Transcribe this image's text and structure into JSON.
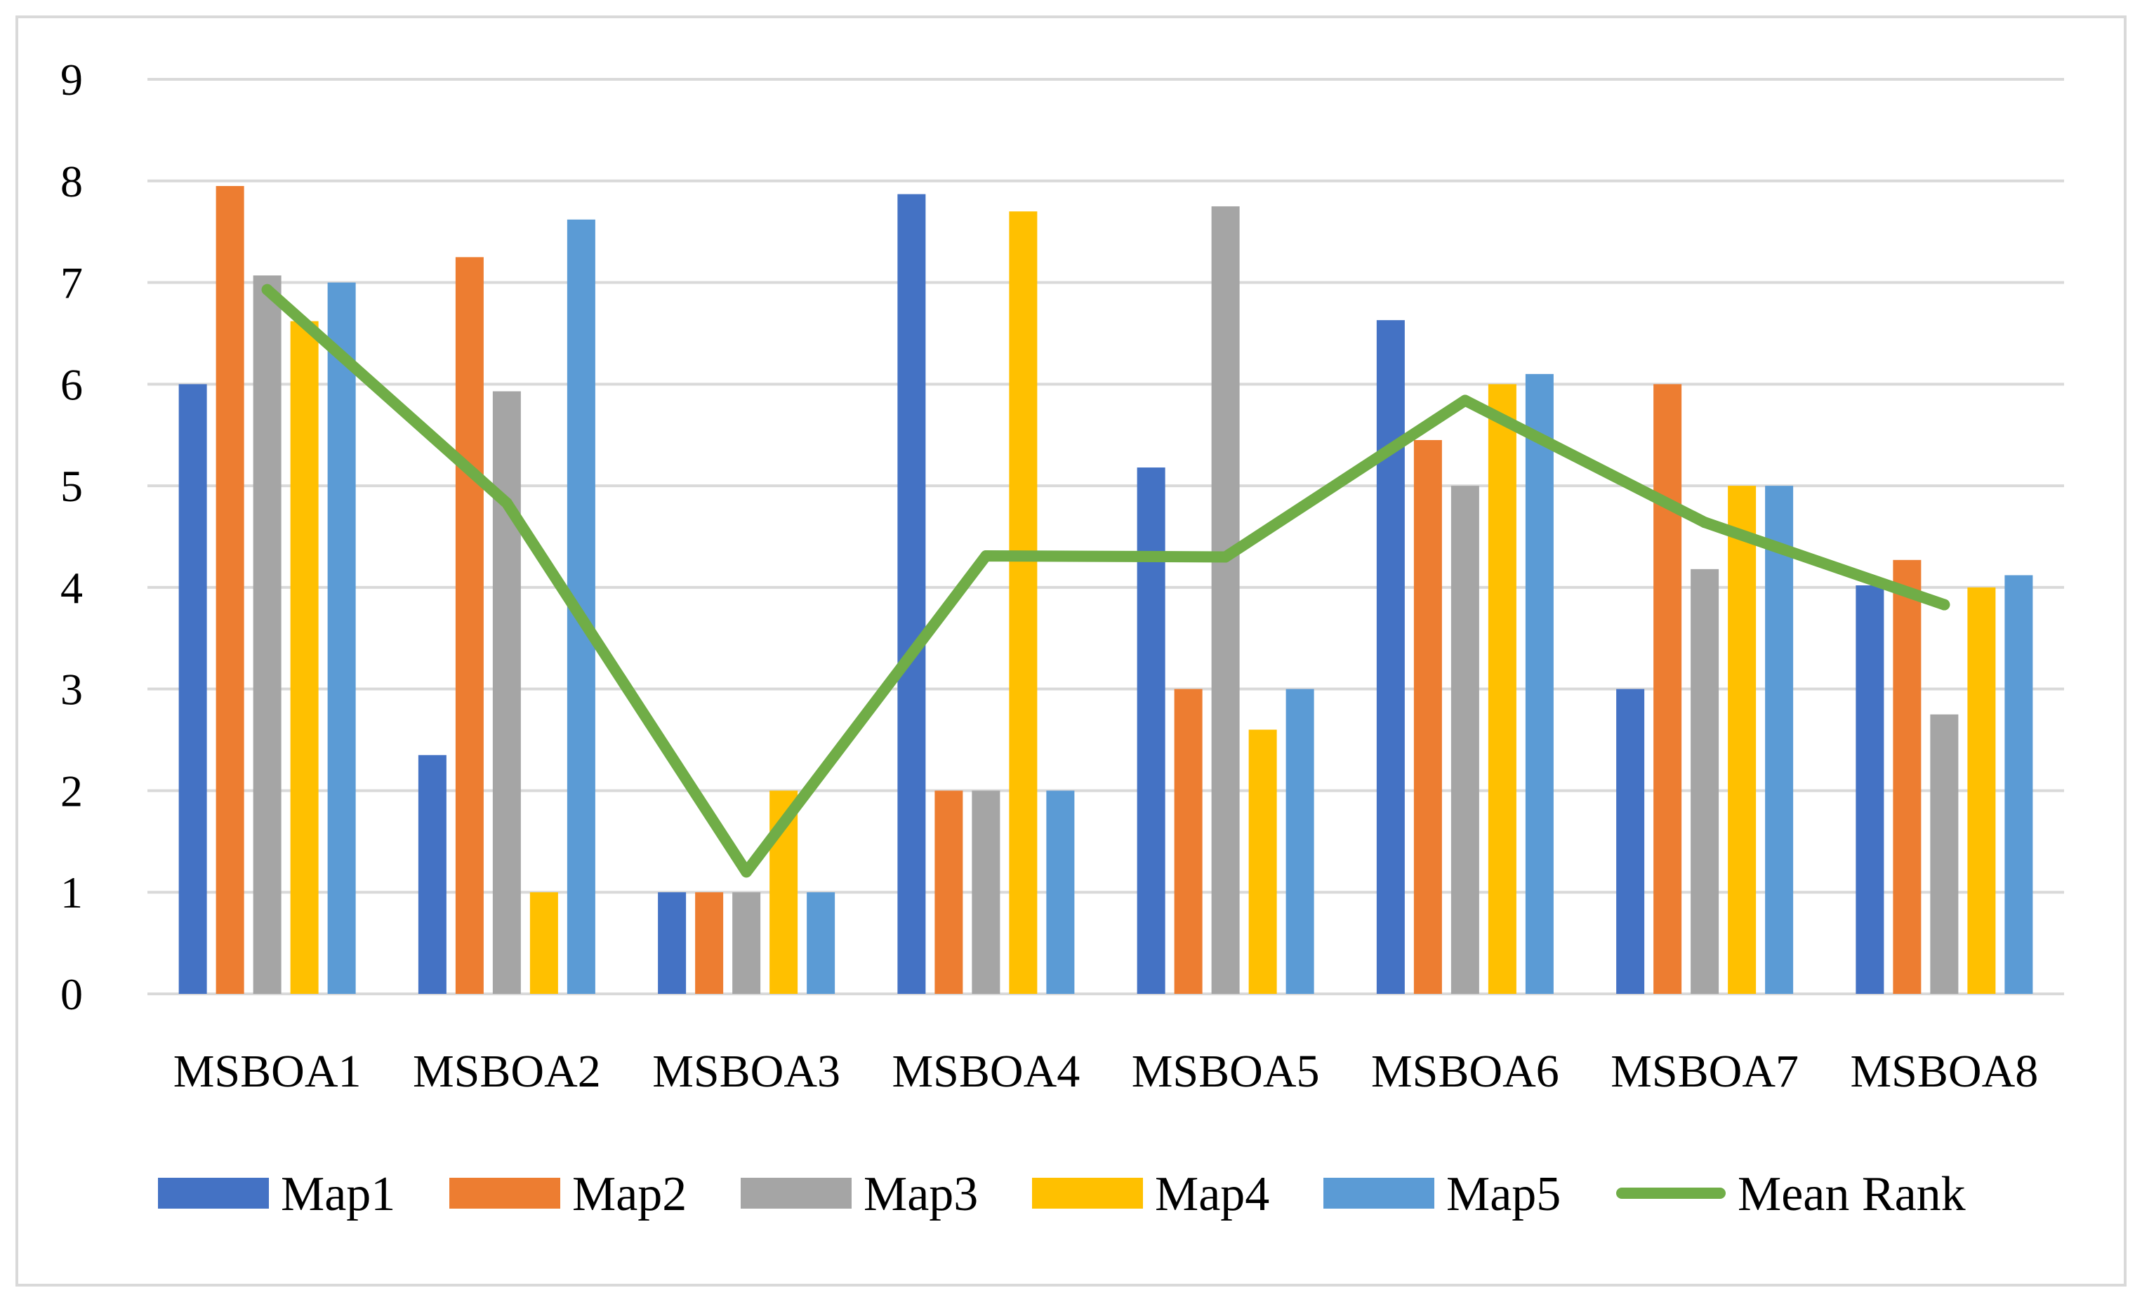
{
  "chart_data": {
    "type": "bar",
    "title": "",
    "xlabel": "",
    "ylabel": "",
    "ylim": [
      0,
      9
    ],
    "yticks": [
      "0",
      "1",
      "2",
      "3",
      "4",
      "5",
      "6",
      "7",
      "8",
      "9"
    ],
    "grid": true,
    "legend_position": "bottom",
    "categories": [
      "MSBOA1",
      "MSBOA2",
      "MSBOA3",
      "MSBOA4",
      "MSBOA5",
      "MSBOA6",
      "MSBOA7",
      "MSBOA8"
    ],
    "series": [
      {
        "name": "Map1",
        "color": "#4472c4",
        "values": [
          6,
          2.35,
          1,
          7.87,
          5.18,
          6.63,
          3,
          4.02
        ]
      },
      {
        "name": "Map2",
        "color": "#ed7d31",
        "values": [
          7.95,
          7.25,
          1,
          2,
          3,
          5.45,
          6,
          4.27
        ]
      },
      {
        "name": "Map3",
        "color": "#a5a5a5",
        "values": [
          7.07,
          5.93,
          1,
          2,
          7.75,
          5,
          4.18,
          2.75
        ]
      },
      {
        "name": "Map4",
        "color": "#ffc000",
        "values": [
          6.62,
          1,
          2,
          7.7,
          2.6,
          6,
          5,
          4
        ]
      },
      {
        "name": "Map5",
        "color": "#5b9bd5",
        "values": [
          7,
          7.62,
          1,
          2,
          3,
          6.1,
          5,
          4.12
        ]
      }
    ],
    "line_series": {
      "name": "Mean Rank",
      "color": "#70ad47",
      "values": [
        6.93,
        4.83,
        1.2,
        4.31,
        4.3,
        5.84,
        4.64,
        3.83
      ]
    }
  }
}
